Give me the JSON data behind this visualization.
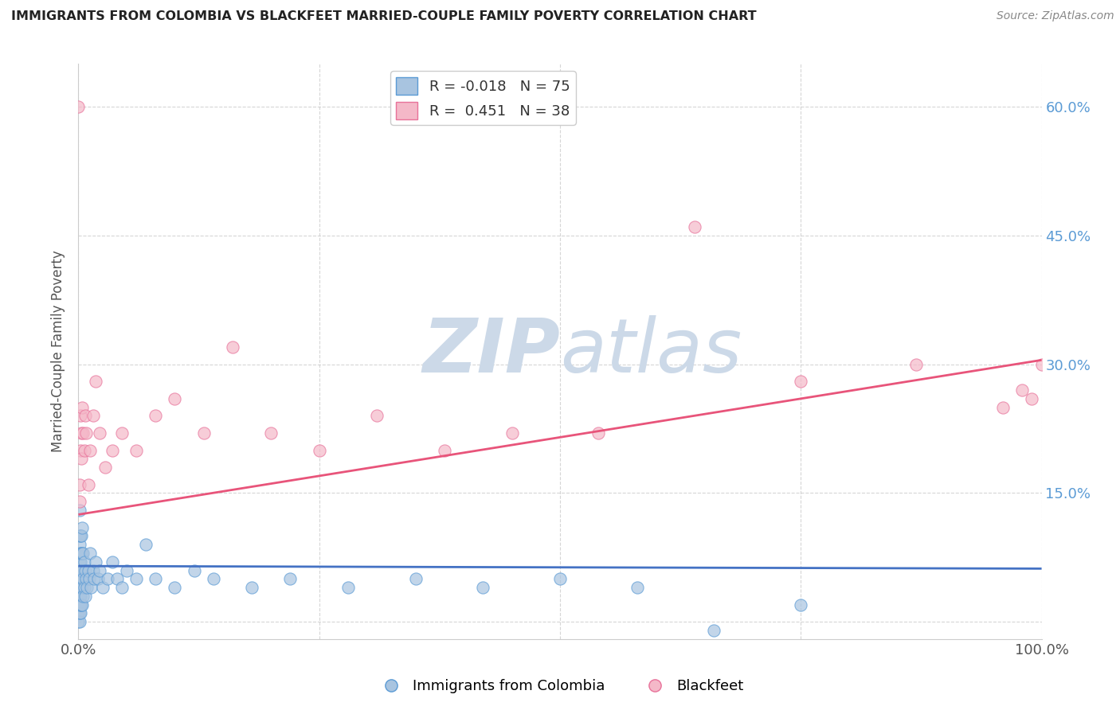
{
  "title": "IMMIGRANTS FROM COLOMBIA VS BLACKFEET MARRIED-COUPLE FAMILY POVERTY CORRELATION CHART",
  "source": "Source: ZipAtlas.com",
  "ylabel": "Married-Couple Family Poverty",
  "xlim": [
    0,
    1.0
  ],
  "ylim": [
    -0.02,
    0.65
  ],
  "ytick_vals": [
    0.0,
    0.15,
    0.3,
    0.45,
    0.6
  ],
  "ytick_labels": [
    "",
    "15.0%",
    "30.0%",
    "45.0%",
    "60.0%"
  ],
  "xtick_vals": [
    0.0,
    0.25,
    0.5,
    0.75,
    1.0
  ],
  "xtick_labels": [
    "0.0%",
    "",
    "",
    "",
    "100.0%"
  ],
  "legend_R1": "-0.018",
  "legend_N1": "75",
  "legend_R2": "0.451",
  "legend_N2": "38",
  "color_blue": "#a8c4e0",
  "color_pink": "#f4b8c8",
  "edge_blue": "#5b9bd5",
  "edge_pink": "#e8729a",
  "line_blue": "#4472c4",
  "line_pink": "#e8547a",
  "watermark_color": "#ccd9e8",
  "colombia_x": [
    0.0,
    0.0,
    0.0,
    0.0,
    0.0,
    0.001,
    0.001,
    0.001,
    0.001,
    0.001,
    0.001,
    0.001,
    0.001,
    0.001,
    0.001,
    0.001,
    0.002,
    0.002,
    0.002,
    0.002,
    0.002,
    0.002,
    0.002,
    0.002,
    0.002,
    0.003,
    0.003,
    0.003,
    0.003,
    0.003,
    0.003,
    0.004,
    0.004,
    0.004,
    0.004,
    0.004,
    0.005,
    0.005,
    0.005,
    0.006,
    0.006,
    0.007,
    0.007,
    0.008,
    0.009,
    0.01,
    0.011,
    0.012,
    0.013,
    0.015,
    0.016,
    0.018,
    0.02,
    0.022,
    0.025,
    0.03,
    0.035,
    0.04,
    0.045,
    0.05,
    0.06,
    0.07,
    0.08,
    0.1,
    0.12,
    0.14,
    0.18,
    0.22,
    0.28,
    0.35,
    0.42,
    0.5,
    0.58,
    0.66,
    0.75
  ],
  "colombia_y": [
    0.0,
    0.01,
    0.02,
    0.03,
    0.04,
    0.0,
    0.01,
    0.02,
    0.03,
    0.05,
    0.06,
    0.07,
    0.08,
    0.09,
    0.1,
    0.13,
    0.01,
    0.02,
    0.03,
    0.04,
    0.05,
    0.06,
    0.07,
    0.08,
    0.1,
    0.02,
    0.04,
    0.05,
    0.06,
    0.08,
    0.1,
    0.02,
    0.04,
    0.06,
    0.08,
    0.11,
    0.03,
    0.05,
    0.08,
    0.04,
    0.07,
    0.03,
    0.06,
    0.05,
    0.04,
    0.06,
    0.05,
    0.08,
    0.04,
    0.06,
    0.05,
    0.07,
    0.05,
    0.06,
    0.04,
    0.05,
    0.07,
    0.05,
    0.04,
    0.06,
    0.05,
    0.09,
    0.05,
    0.04,
    0.06,
    0.05,
    0.04,
    0.05,
    0.04,
    0.05,
    0.04,
    0.05,
    0.04,
    -0.01,
    0.02
  ],
  "blackfeet_x": [
    0.0,
    0.001,
    0.001,
    0.002,
    0.002,
    0.003,
    0.003,
    0.004,
    0.005,
    0.006,
    0.007,
    0.008,
    0.01,
    0.012,
    0.015,
    0.018,
    0.022,
    0.028,
    0.035,
    0.045,
    0.06,
    0.08,
    0.1,
    0.13,
    0.16,
    0.2,
    0.25,
    0.31,
    0.38,
    0.45,
    0.54,
    0.64,
    0.75,
    0.87,
    0.96,
    0.98,
    0.99,
    1.0
  ],
  "blackfeet_y": [
    0.6,
    0.14,
    0.16,
    0.2,
    0.24,
    0.19,
    0.22,
    0.25,
    0.22,
    0.2,
    0.24,
    0.22,
    0.16,
    0.2,
    0.24,
    0.28,
    0.22,
    0.18,
    0.2,
    0.22,
    0.2,
    0.24,
    0.26,
    0.22,
    0.32,
    0.22,
    0.2,
    0.24,
    0.2,
    0.22,
    0.22,
    0.46,
    0.28,
    0.3,
    0.25,
    0.27,
    0.26,
    0.3
  ],
  "blue_line_x": [
    0.0,
    1.0
  ],
  "blue_line_y": [
    0.065,
    0.062
  ],
  "pink_line_x": [
    0.0,
    1.0
  ],
  "pink_line_y": [
    0.125,
    0.305
  ]
}
